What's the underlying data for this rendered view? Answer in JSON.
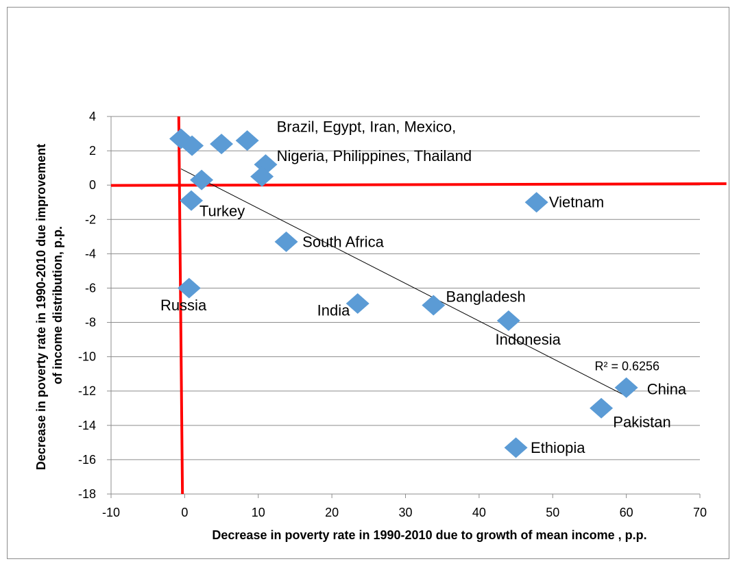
{
  "chart_data": {
    "type": "scatter",
    "xlabel": "Decrease in poverty rate in 1990-2010 due to growth of mean income , p.p.",
    "ylabel_lines": [
      "Decrease in poverty rate in 1990-2010 due improvement",
      "of income distribution, p.p."
    ],
    "xlim": [
      -10,
      70
    ],
    "ylim": [
      -18,
      4
    ],
    "x_ticks": [
      -10,
      0,
      10,
      20,
      30,
      40,
      50,
      60,
      70
    ],
    "y_ticks": [
      4,
      2,
      0,
      -2,
      -4,
      -6,
      -8,
      -10,
      -12,
      -14,
      -16,
      -18
    ],
    "grid": "horizontal",
    "marker_color": "#5b9bd5",
    "points": [
      {
        "x": -0.5,
        "y": 2.7
      },
      {
        "x": 1.0,
        "y": 2.3
      },
      {
        "x": 5.0,
        "y": 2.4
      },
      {
        "x": 8.5,
        "y": 2.6
      },
      {
        "x": 2.3,
        "y": 0.3
      },
      {
        "x": 11.0,
        "y": 1.2
      },
      {
        "x": 10.5,
        "y": 0.5
      },
      {
        "x": 0.9,
        "y": -0.9
      },
      {
        "x": 47.8,
        "y": -1.0
      },
      {
        "x": 13.8,
        "y": -3.3
      },
      {
        "x": 0.6,
        "y": -6.0
      },
      {
        "x": 23.5,
        "y": -6.9
      },
      {
        "x": 33.8,
        "y": -7.0
      },
      {
        "x": 44.0,
        "y": -7.9
      },
      {
        "x": 60.0,
        "y": -11.8
      },
      {
        "x": 56.6,
        "y": -13.0
      },
      {
        "x": 45.0,
        "y": -15.3
      }
    ],
    "labels": [
      {
        "text": "Brazil,  Egypt,  Iran,  Mexico,",
        "x": 12.5,
        "y": 3.1
      },
      {
        "text": "Nigeria, Philippines, Thailand",
        "x": 12.5,
        "y": 1.4
      },
      {
        "text": "Turkey",
        "x": 2.0,
        "y": -1.8
      },
      {
        "text": "Vietnam",
        "x": 49.5,
        "y": -1.3
      },
      {
        "text": "South Africa",
        "x": 16.0,
        "y": -3.6
      },
      {
        "text": "Russia",
        "x": -3.3,
        "y": -7.3
      },
      {
        "text": "India",
        "x": 18.0,
        "y": -7.6
      },
      {
        "text": "Bangladesh",
        "x": 35.5,
        "y": -6.8
      },
      {
        "text": "Indonesia",
        "x": 42.2,
        "y": -9.3
      },
      {
        "text": "China",
        "x": 62.8,
        "y": -12.2
      },
      {
        "text": "Pakistan",
        "x": 58.2,
        "y": -14.1
      },
      {
        "text": "Ethiopia",
        "x": 47.0,
        "y": -15.6
      }
    ],
    "trendline": {
      "x1": -0.5,
      "y1": 0.95,
      "x2": 60.0,
      "y2": -12.3,
      "r2_label": "R² = 0.6256",
      "r2_x": 55.7,
      "r2_y": -10.8
    },
    "red_lines": {
      "color": "#ff0000",
      "vertical": {
        "x1": -0.8,
        "y1": 4.0,
        "x2": -0.3,
        "y2": -18.0
      },
      "horizontal": {
        "x1": -10.0,
        "y1": -0.02,
        "x2": 73.6,
        "y2": 0.08
      }
    }
  }
}
